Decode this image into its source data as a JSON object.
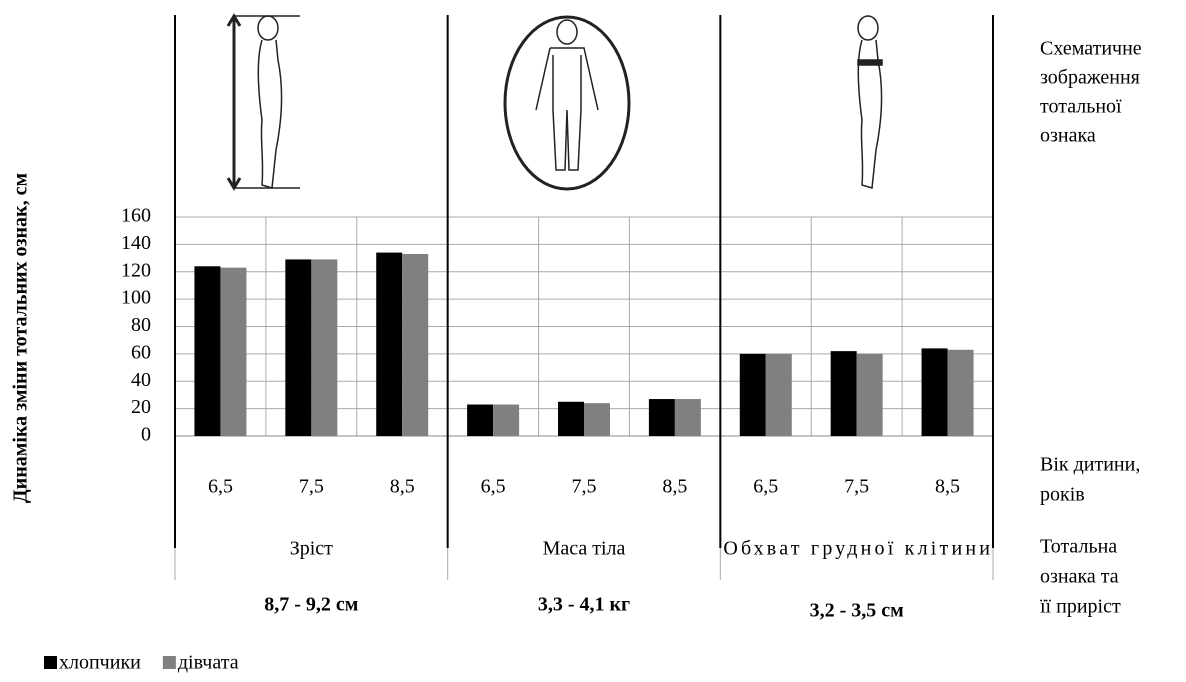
{
  "chart_data": {
    "type": "bar",
    "y_label": "Динаміка зміни тотальних ознак, см",
    "categories": [
      "6,5",
      "7,5",
      "8,5",
      "6,5",
      "7,5",
      "8,5",
      "6,5",
      "7,5",
      "8,5"
    ],
    "series": [
      {
        "name": "хлопчики",
        "color": "#000000",
        "values": [
          124,
          129,
          134,
          23,
          25,
          27,
          60,
          62,
          64
        ]
      },
      {
        "name": "дівчата",
        "color": "#808080",
        "values": [
          123,
          129,
          133,
          23,
          24,
          27,
          60,
          60,
          63
        ]
      }
    ],
    "groups": [
      {
        "label": "Зріст",
        "increment": "8,7 - 9,2 см"
      },
      {
        "label": "Маса тіла",
        "increment": "3,3 - 4,1 кг"
      },
      {
        "label": "Обхват грудної клітини",
        "increment": "3,2 - 3,5 см"
      }
    ],
    "image_caption": [
      "Схематичне",
      "зображення",
      "тотальної",
      "ознака"
    ],
    "age_caption": [
      "Вік дитини,",
      "років"
    ],
    "trait_caption": [
      "Тотальна",
      "ознака та",
      "її приріст"
    ],
    "ylim": [
      0,
      160
    ],
    "yticks": [
      0,
      20,
      40,
      60,
      80,
      100,
      120,
      140,
      160
    ],
    "grid": true
  }
}
